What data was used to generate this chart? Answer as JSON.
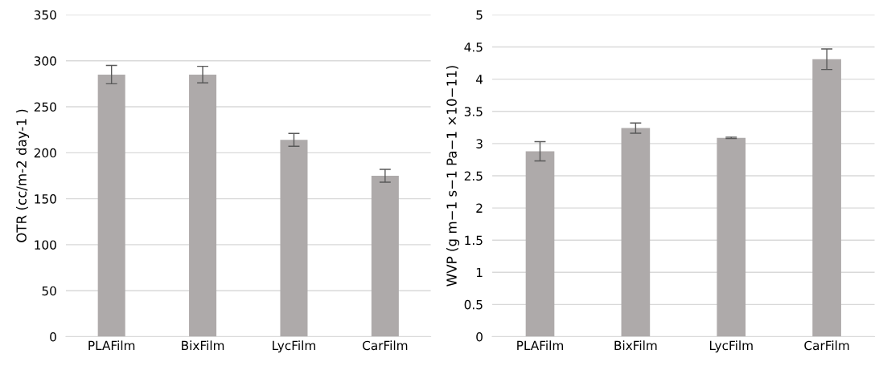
{
  "chart_data": [
    {
      "type": "bar",
      "ylabel": "OTR (cc/m-2 day-1 )",
      "categories": [
        "PLAFilm",
        "BixFilm",
        "LycFilm",
        "CarFilm"
      ],
      "values": [
        285,
        285,
        214,
        175
      ],
      "errors": [
        10,
        9,
        7,
        7
      ],
      "color": "#aeaaaa",
      "ylim": [
        0,
        350
      ],
      "yticks": [
        0,
        50,
        100,
        150,
        200,
        250,
        300,
        350
      ],
      "grid": "y",
      "legend": false
    },
    {
      "type": "bar",
      "ylabel": "WVP (g m−1 s−1 Pa−1 ×10−11)",
      "categories": [
        "PLAFilm",
        "BixFilm",
        "LycFilm",
        "CarFilm"
      ],
      "values": [
        2.88,
        3.24,
        3.09,
        4.31
      ],
      "errors": [
        0.15,
        0.08,
        0.01,
        0.16
      ],
      "color": "#aeaaaa",
      "ylim": [
        0,
        5
      ],
      "yticks": [
        0,
        0.5,
        1,
        1.5,
        2,
        2.5,
        3,
        3.5,
        4,
        4.5,
        5
      ],
      "grid": "y",
      "legend": false
    }
  ]
}
